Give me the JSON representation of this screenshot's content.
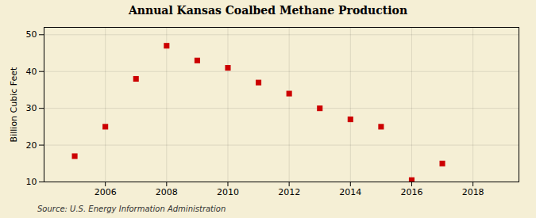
{
  "chart_data": {
    "type": "scatter",
    "title": "Annual Kansas Coalbed Methane Production",
    "ylabel": "Billion Cubic Feet",
    "source": "Source: U.S. Energy Information Administration",
    "x": [
      2005,
      2006,
      2007,
      2008,
      2009,
      2010,
      2011,
      2012,
      2013,
      2014,
      2015,
      2016,
      2017
    ],
    "values": [
      17,
      25,
      38,
      47,
      43,
      41,
      37,
      34,
      30,
      27,
      25,
      10.5,
      15
    ],
    "xlim": [
      2004.0,
      2019.5
    ],
    "xticks": [
      2006,
      2008,
      2010,
      2012,
      2014,
      2016,
      2018
    ],
    "ylim": [
      10,
      52
    ],
    "yticks": [
      10,
      20,
      30,
      40,
      50
    ],
    "color": "#cc0000",
    "marker": "square",
    "grid": true
  }
}
